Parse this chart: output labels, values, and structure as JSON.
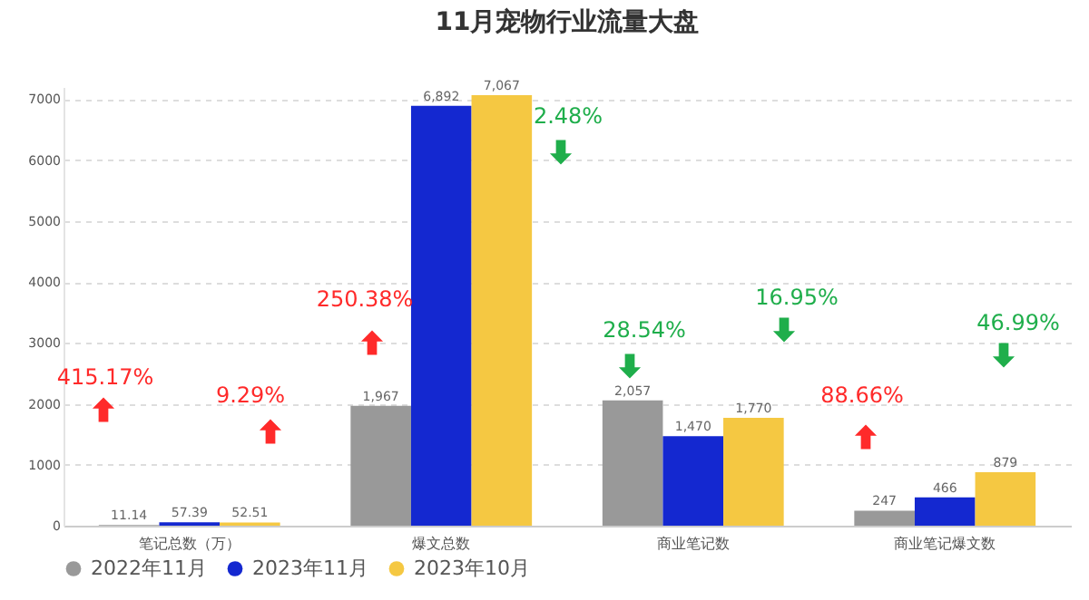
{
  "chart_data": {
    "type": "bar",
    "title": "11月宠物行业流量大盘",
    "categories": [
      "笔记总数（万）",
      "爆文总数",
      "商业笔记数",
      "商业笔记爆文数"
    ],
    "series": [
      {
        "name": "2022年11月",
        "color": "#999999",
        "values": [
          11.14,
          1967,
          2057,
          247
        ],
        "value_labels": [
          "11.14",
          "1,967",
          "2,057",
          "247"
        ]
      },
      {
        "name": "2023年11月",
        "color": "#1428d0",
        "values": [
          57.39,
          6892,
          1470,
          466
        ],
        "value_labels": [
          "57.39",
          "6,892",
          "1,470",
          "466"
        ]
      },
      {
        "name": "2023年10月",
        "color": "#f5c842",
        "values": [
          52.51,
          7067,
          1770,
          879
        ],
        "value_labels": [
          "52.51",
          "7,067",
          "1,770",
          "879"
        ]
      }
    ],
    "annotations": [
      "415.17%",
      "9.29%",
      "250.38%",
      "2.48%",
      "28.54%",
      "16.95%",
      "88.66%",
      "46.99%"
    ],
    "ylim": [
      0,
      7200
    ],
    "yticks": [
      0,
      1000,
      2000,
      3000,
      4000,
      5000,
      6000,
      7000
    ],
    "grid": "y",
    "legend": "bottom"
  }
}
